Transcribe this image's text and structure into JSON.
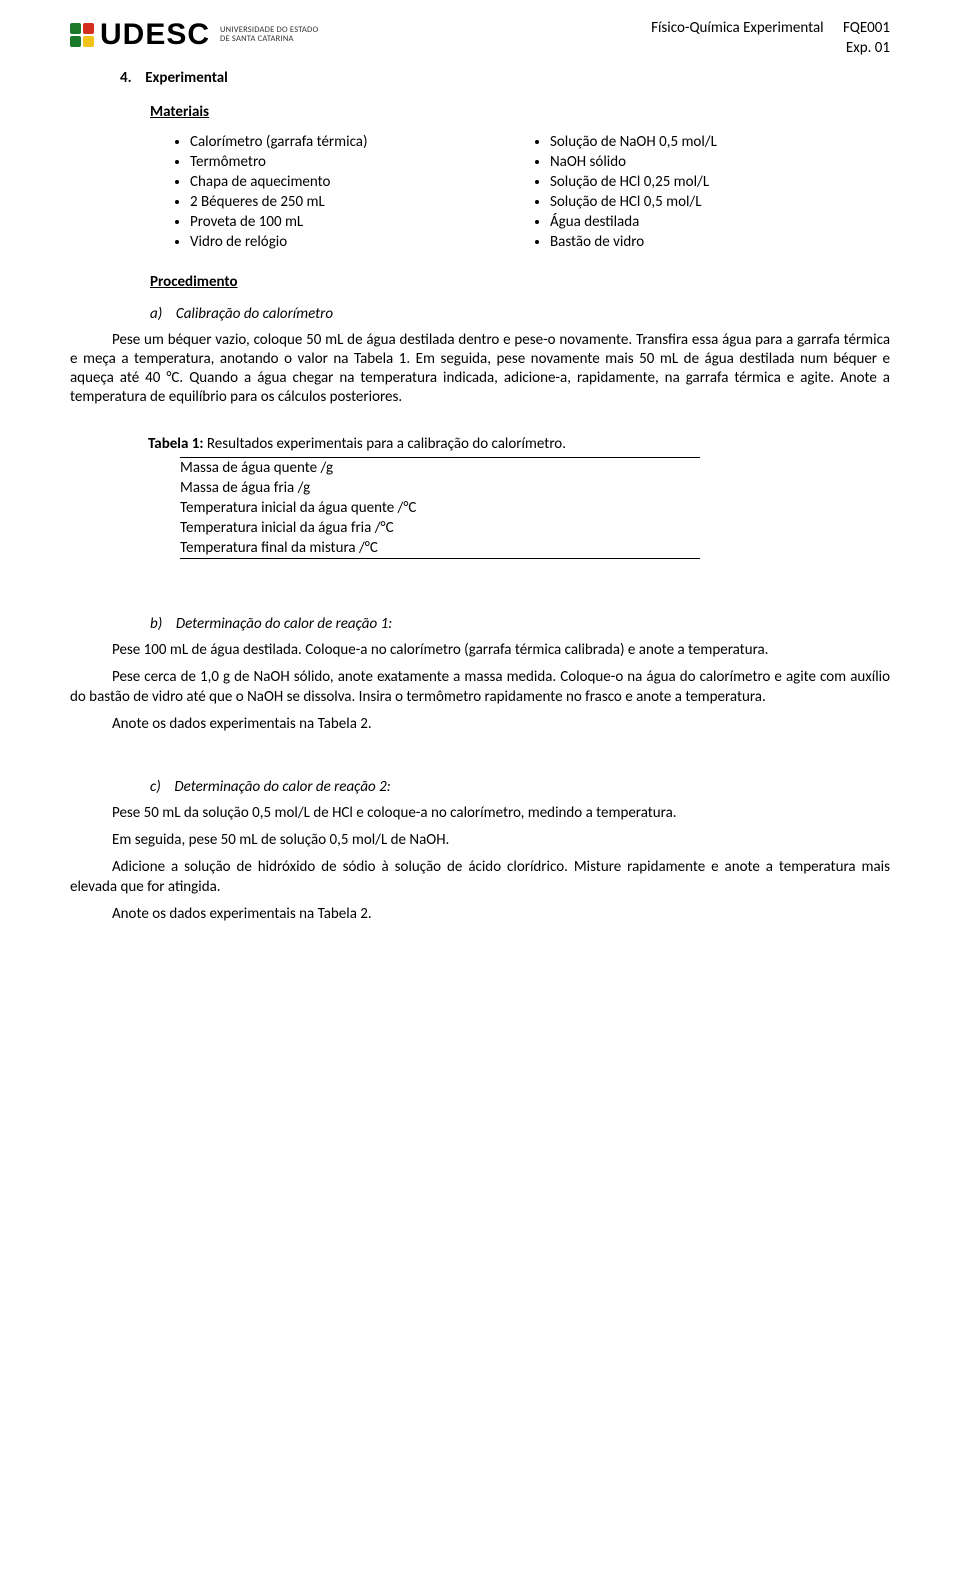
{
  "header": {
    "logo_word": "UDESC",
    "logo_sub_line1": "UNIVERSIDADE DO ESTADO",
    "logo_sub_line2": "DE SANTA CATARINA",
    "course": "Físico-Química Experimental",
    "code": "FQE001",
    "exp": "Exp. 01"
  },
  "section": {
    "num": "4.",
    "title": "Experimental"
  },
  "materiais": {
    "heading": "Materiais",
    "left": [
      "Calorímetro (garrafa térmica)",
      "Termômetro",
      "Chapa de aquecimento",
      "2 Béqueres de 250 mL",
      "Proveta de 100 mL",
      "Vidro de relógio"
    ],
    "right": [
      "Solução de NaOH 0,5 mol/L",
      "NaOH sólido",
      "Solução de HCl 0,25 mol/L",
      "Solução de HCl 0,5 mol/L",
      "Água destilada",
      "Bastão de vidro"
    ]
  },
  "procedimento": {
    "heading": "Procedimento",
    "a_label": "a)",
    "a_title": "Calibração do calorímetro",
    "a_text": "Pese um béquer vazio, coloque 50 mL de água destilada dentro e pese-o novamente. Transfira essa água para a garrafa térmica e meça a temperatura, anotando o valor na Tabela 1. Em seguida, pese novamente mais 50 mL de água destilada num béquer e aqueça até 40 °C. Quando a água chegar na temperatura indicada, adicione-a, rapidamente, na garrafa térmica e agite. Anote a temperatura de equilíbrio para os cálculos posteriores.",
    "b_label": "b)",
    "b_title": "Determinação do calor de reação 1:",
    "b_p1": "Pese 100 mL de água destilada. Coloque-a no calorímetro (garrafa térmica calibrada) e anote a temperatura.",
    "b_p2": "Pese cerca de 1,0 g de NaOH sólido, anote exatamente a massa medida. Coloque-o na água do calorímetro e agite com auxílio do bastão de vidro até que o NaOH se dissolva. Insira o termômetro rapidamente no frasco e anote a temperatura.",
    "b_p3": "Anote os dados experimentais na Tabela 2.",
    "c_label": "c)",
    "c_title": "Determinação do calor de reação 2:",
    "c_p1": "Pese 50 mL da solução 0,5 mol/L de HCl e coloque-a no calorímetro, medindo a temperatura.",
    "c_p2": "Em seguida, pese 50 mL de solução 0,5 mol/L de NaOH.",
    "c_p3": "Adicione a solução de hidróxido de sódio à solução de ácido clorídrico. Misture rapidamente e anote a temperatura mais elevada que for atingida.",
    "c_p4": "Anote os dados experimentais na Tabela 2."
  },
  "tabela1": {
    "caption_bold": "Tabela 1:",
    "caption_rest": " Resultados experimentais para a calibração do calorímetro.",
    "rows": [
      "Massa de água quente /g",
      "Massa de água fria /g",
      "Temperatura inicial da água quente /°C",
      "Temperatura inicial da água fria /°C",
      "Temperatura final da mistura /°C"
    ]
  }
}
